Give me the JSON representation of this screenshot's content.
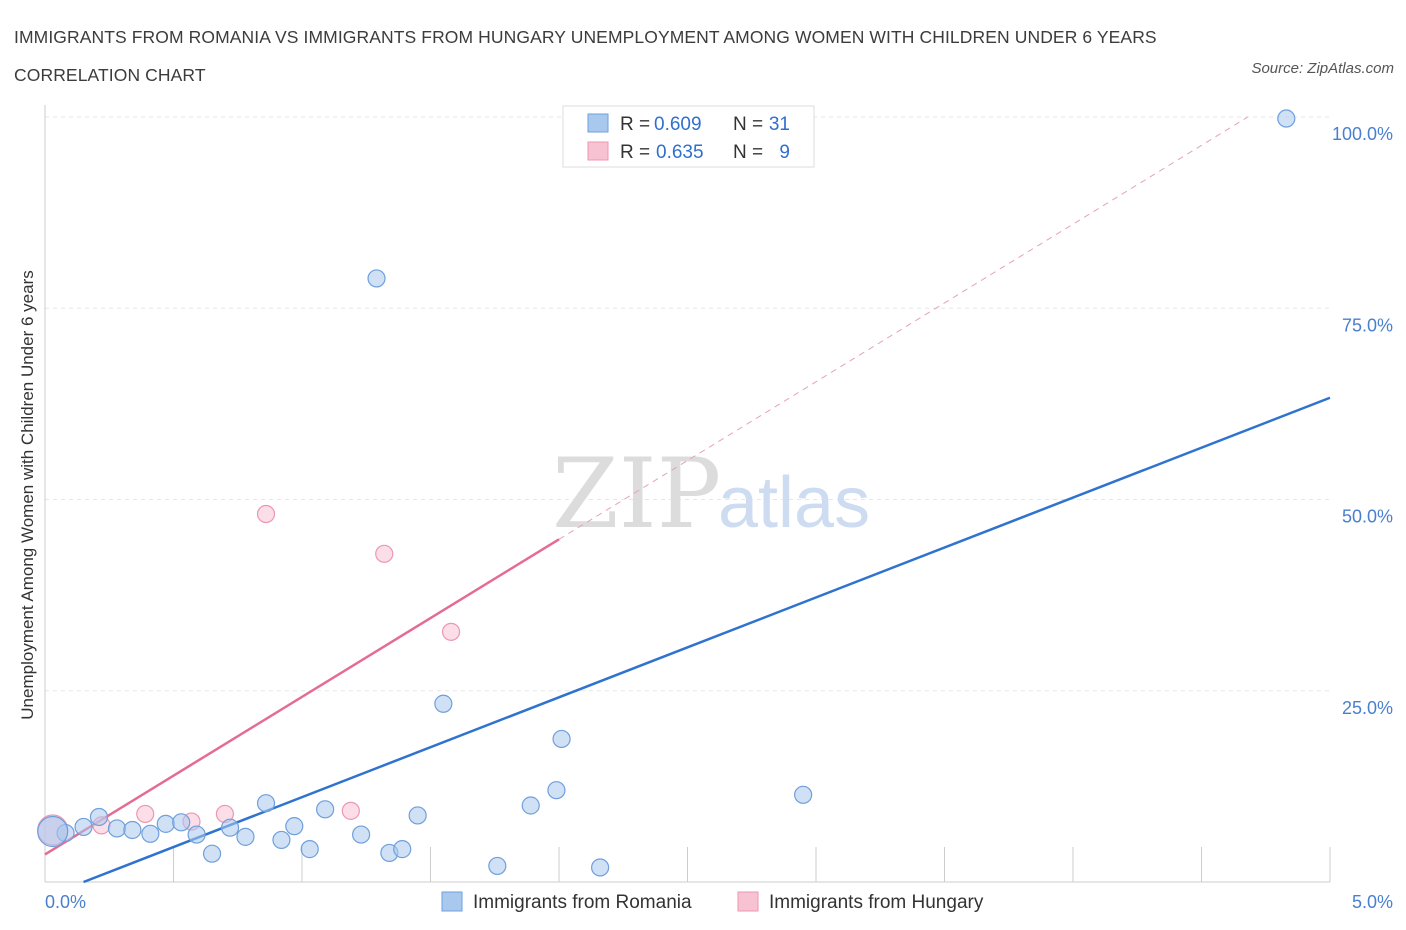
{
  "chart_data": {
    "type": "scatter",
    "title": "IMMIGRANTS FROM ROMANIA VS IMMIGRANTS FROM HUNGARY UNEMPLOYMENT AMONG WOMEN WITH CHILDREN UNDER 6 YEARS CORRELATION CHART",
    "source": "Source: ZipAtlas.com",
    "xlabel": "",
    "ylabel": "Unemployment Among Women with Children Under 6 years",
    "xlim": [
      0,
      5
    ],
    "ylim": [
      0,
      100
    ],
    "x_tick_labels": [
      "0.0%",
      "5.0%"
    ],
    "y_ticks": [
      25,
      50,
      75,
      100
    ],
    "y_tick_labels": [
      "25.0%",
      "50.0%",
      "75.0%",
      "100.0%"
    ],
    "grid": true,
    "legend_position": "top-center",
    "watermark": {
      "zip": "ZIP",
      "atlas": "atlas"
    },
    "legend": {
      "r_label": "R =",
      "n_label": "N =",
      "romania": {
        "r": "0.609",
        "n": "31"
      },
      "hungary": {
        "r": "0.635",
        "n": "9"
      }
    },
    "series": [
      {
        "name": "Immigrants from Romania",
        "color": "#a9c8ee",
        "edge": "#6f9fdc",
        "points": [
          {
            "x": 0.08,
            "y": 6.4
          },
          {
            "x": 0.15,
            "y": 7.2
          },
          {
            "x": 0.21,
            "y": 8.5
          },
          {
            "x": 0.28,
            "y": 7.0
          },
          {
            "x": 0.34,
            "y": 6.8
          },
          {
            "x": 0.41,
            "y": 6.3
          },
          {
            "x": 0.47,
            "y": 7.6
          },
          {
            "x": 0.53,
            "y": 7.8
          },
          {
            "x": 0.59,
            "y": 6.2
          },
          {
            "x": 0.65,
            "y": 3.7
          },
          {
            "x": 0.72,
            "y": 7.1
          },
          {
            "x": 0.78,
            "y": 5.9
          },
          {
            "x": 0.86,
            "y": 10.3
          },
          {
            "x": 0.92,
            "y": 5.5
          },
          {
            "x": 0.97,
            "y": 7.3
          },
          {
            "x": 1.03,
            "y": 4.3
          },
          {
            "x": 1.09,
            "y": 9.5
          },
          {
            "x": 1.23,
            "y": 6.2
          },
          {
            "x": 1.29,
            "y": 78.9
          },
          {
            "x": 1.34,
            "y": 3.8
          },
          {
            "x": 1.39,
            "y": 4.3
          },
          {
            "x": 1.45,
            "y": 8.7
          },
          {
            "x": 1.55,
            "y": 23.3
          },
          {
            "x": 1.76,
            "y": 2.1
          },
          {
            "x": 1.89,
            "y": 10.0
          },
          {
            "x": 1.99,
            "y": 12.0
          },
          {
            "x": 2.01,
            "y": 18.7
          },
          {
            "x": 2.16,
            "y": 1.9
          },
          {
            "x": 2.95,
            "y": 11.4
          },
          {
            "x": 4.83,
            "y": 99.8
          },
          {
            "x": 0.03,
            "y": 6.6
          }
        ],
        "trend": {
          "x0": 0.15,
          "y0": 0.0,
          "x1": 5.0,
          "y1": 63.3
        }
      },
      {
        "name": "Immigrants from Hungary",
        "color": "#f7c3d3",
        "edge": "#ec97b3",
        "points": [
          {
            "x": 0.03,
            "y": 6.8
          },
          {
            "x": 0.22,
            "y": 7.4
          },
          {
            "x": 0.39,
            "y": 8.9
          },
          {
            "x": 0.57,
            "y": 7.9
          },
          {
            "x": 0.7,
            "y": 8.9
          },
          {
            "x": 0.86,
            "y": 48.1
          },
          {
            "x": 1.19,
            "y": 9.3
          },
          {
            "x": 1.32,
            "y": 42.9
          },
          {
            "x": 1.58,
            "y": 32.7
          }
        ],
        "trend": {
          "x0": 0.0,
          "y0": 3.6,
          "x1": 2.0,
          "y1": 44.8
        },
        "trend_extension": {
          "x0": 2.0,
          "y0": 44.8,
          "x1": 4.68,
          "y1": 100.0
        }
      }
    ]
  }
}
